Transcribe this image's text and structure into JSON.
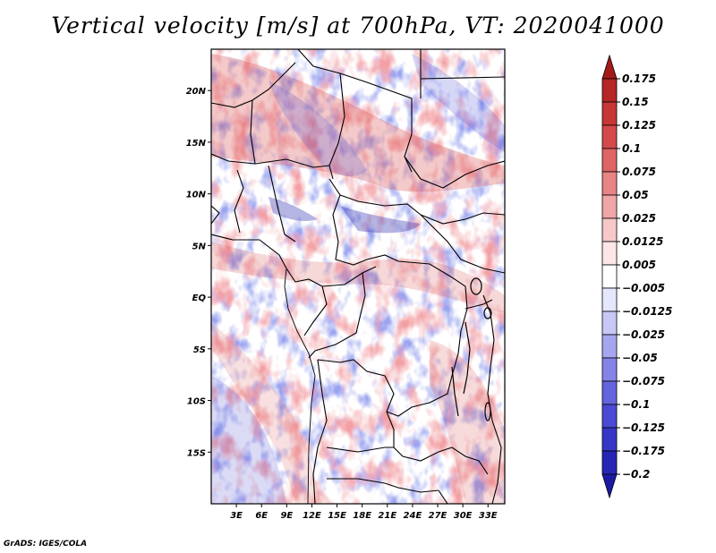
{
  "title": "Vertical velocity [m/s] at 700hPa, VT: 2020041000",
  "credit": "GrADS: IGES/COLA",
  "map": {
    "variable": "Vertical velocity",
    "units": "m/s",
    "level": "700hPa",
    "valid_time": "2020041000",
    "lon_range": [
      0,
      35
    ],
    "lat_range": [
      -20,
      24
    ],
    "lat_ticks": [
      {
        "value": 20,
        "label": "20N"
      },
      {
        "value": 15,
        "label": "15N"
      },
      {
        "value": 10,
        "label": "10N"
      },
      {
        "value": 5,
        "label": "5N"
      },
      {
        "value": 0,
        "label": "EQ"
      },
      {
        "value": -5,
        "label": "5S"
      },
      {
        "value": -10,
        "label": "10S"
      },
      {
        "value": -15,
        "label": "15S"
      }
    ],
    "lon_ticks": [
      {
        "value": 3,
        "label": "3E"
      },
      {
        "value": 6,
        "label": "6E"
      },
      {
        "value": 9,
        "label": "9E"
      },
      {
        "value": 12,
        "label": "12E"
      },
      {
        "value": 15,
        "label": "15E"
      },
      {
        "value": 18,
        "label": "18E"
      },
      {
        "value": 21,
        "label": "21E"
      },
      {
        "value": 24,
        "label": "24E"
      },
      {
        "value": 27,
        "label": "27E"
      },
      {
        "value": 30,
        "label": "30E"
      },
      {
        "value": 33,
        "label": "33E"
      }
    ]
  },
  "colorbar": {
    "levels": [
      "0.175",
      "0.15",
      "0.125",
      "0.1",
      "0.075",
      "0.05",
      "0.025",
      "0.0125",
      "0.005",
      "-0.005",
      "-0.0125",
      "-0.025",
      "-0.05",
      "-0.075",
      "-0.1",
      "-0.125",
      "-0.175",
      "-0.2"
    ],
    "colors": [
      "#a41a1a",
      "#b52626",
      "#c63636",
      "#d44a4a",
      "#df6464",
      "#e88484",
      "#f0a6a6",
      "#f7c8c8",
      "#fde6e6",
      "#ffffff",
      "#e6e6fd",
      "#c8c8f7",
      "#a6a6f0",
      "#8484e8",
      "#6464df",
      "#4a4ad4",
      "#3636c6",
      "#2626b5",
      "#1a1aa4"
    ]
  },
  "colors": {
    "positive": "#c83232",
    "negative": "#3c3cc8",
    "border": "#000000"
  }
}
